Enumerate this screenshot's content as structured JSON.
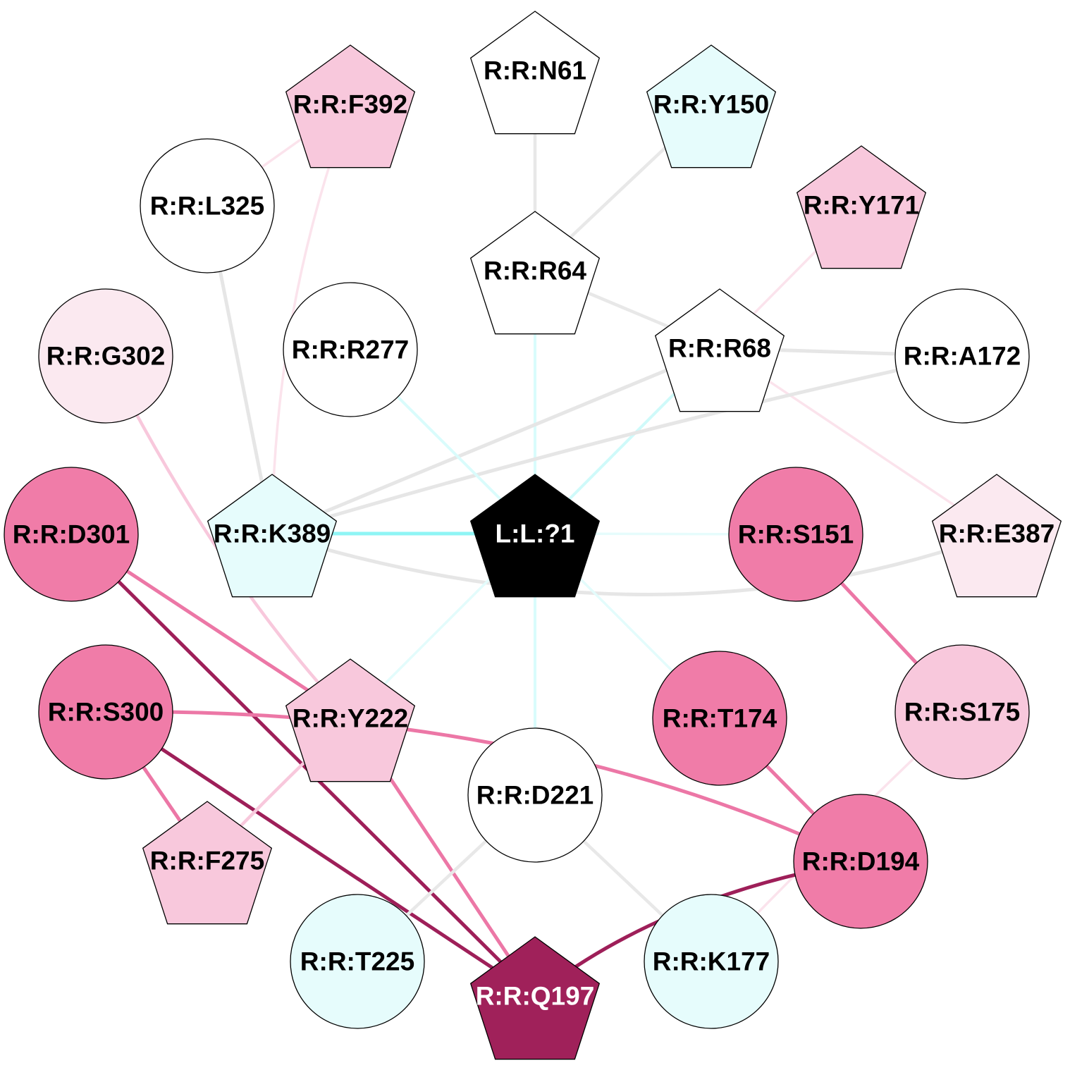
{
  "nodes": [
    {
      "id": "L:L:?1",
      "label": "L:L:?1",
      "shape": "pentagon",
      "fill": "#000000",
      "text_color": "#ffffff"
    },
    {
      "id": "R:R:N61",
      "label": "R:R:N61",
      "shape": "pentagon",
      "fill": "#ffffff",
      "text_color": "#000000"
    },
    {
      "id": "R:R:F392",
      "label": "R:R:F392",
      "shape": "pentagon",
      "fill": "#f8c8dc",
      "text_color": "#000000"
    },
    {
      "id": "R:R:Y150",
      "label": "R:R:Y150",
      "shape": "pentagon",
      "fill": "#e6fcfc",
      "text_color": "#000000"
    },
    {
      "id": "R:R:L325",
      "label": "R:R:L325",
      "shape": "circle",
      "fill": "#ffffff",
      "text_color": "#000000"
    },
    {
      "id": "R:R:Y171",
      "label": "R:R:Y171",
      "shape": "pentagon",
      "fill": "#f8c8dc",
      "text_color": "#000000"
    },
    {
      "id": "R:R:R64",
      "label": "R:R:R64",
      "shape": "pentagon",
      "fill": "#ffffff",
      "text_color": "#000000"
    },
    {
      "id": "R:R:G302",
      "label": "R:R:G302",
      "shape": "circle",
      "fill": "#fbe9f0",
      "text_color": "#000000"
    },
    {
      "id": "R:R:R277",
      "label": "R:R:R277",
      "shape": "circle",
      "fill": "#ffffff",
      "text_color": "#000000"
    },
    {
      "id": "R:R:R68",
      "label": "R:R:R68",
      "shape": "pentagon",
      "fill": "#ffffff",
      "text_color": "#000000"
    },
    {
      "id": "R:R:A172",
      "label": "R:R:A172",
      "shape": "circle",
      "fill": "#ffffff",
      "text_color": "#000000"
    },
    {
      "id": "R:R:D301",
      "label": "R:R:D301",
      "shape": "circle",
      "fill": "#f07ca8",
      "text_color": "#000000"
    },
    {
      "id": "R:R:K389",
      "label": "R:R:K389",
      "shape": "pentagon",
      "fill": "#e6fcfc",
      "text_color": "#000000"
    },
    {
      "id": "R:R:S151",
      "label": "R:R:S151",
      "shape": "circle",
      "fill": "#f07ca8",
      "text_color": "#000000"
    },
    {
      "id": "R:R:E387",
      "label": "R:R:E387",
      "shape": "pentagon",
      "fill": "#fbe9f0",
      "text_color": "#000000"
    },
    {
      "id": "R:R:S300",
      "label": "R:R:S300",
      "shape": "circle",
      "fill": "#f07ca8",
      "text_color": "#000000"
    },
    {
      "id": "R:R:Y222",
      "label": "R:R:Y222",
      "shape": "pentagon",
      "fill": "#f8c8dc",
      "text_color": "#000000"
    },
    {
      "id": "R:R:T174",
      "label": "R:R:T174",
      "shape": "circle",
      "fill": "#f07ca8",
      "text_color": "#000000"
    },
    {
      "id": "R:R:S175",
      "label": "R:R:S175",
      "shape": "circle",
      "fill": "#f8c8dc",
      "text_color": "#000000"
    },
    {
      "id": "R:R:D221",
      "label": "R:R:D221",
      "shape": "circle",
      "fill": "#ffffff",
      "text_color": "#000000"
    },
    {
      "id": "R:R:F275",
      "label": "R:R:F275",
      "shape": "pentagon",
      "fill": "#f8c8dc",
      "text_color": "#000000"
    },
    {
      "id": "R:R:D194",
      "label": "R:R:D194",
      "shape": "circle",
      "fill": "#f07ca8",
      "text_color": "#000000"
    },
    {
      "id": "R:R:T225",
      "label": "R:R:T225",
      "shape": "circle",
      "fill": "#e6fcfc",
      "text_color": "#000000"
    },
    {
      "id": "R:R:K177",
      "label": "R:R:K177",
      "shape": "circle",
      "fill": "#e6fcfc",
      "text_color": "#000000"
    },
    {
      "id": "R:R:Q197",
      "label": "R:R:Q197",
      "shape": "pentagon",
      "fill": "#a0215a",
      "text_color": "#ffffff"
    }
  ],
  "edges": [
    {
      "source": "R:R:N61",
      "target": "R:R:R64",
      "color": "#e8e8e8"
    },
    {
      "source": "R:R:Y150",
      "target": "R:R:R64",
      "color": "#e8e8e8"
    },
    {
      "source": "R:R:R64",
      "target": "R:R:R68",
      "color": "#e8e8e8"
    },
    {
      "source": "R:R:R64",
      "target": "L:L:?1",
      "color": "#d9fcfc"
    },
    {
      "source": "R:R:F392",
      "target": "R:R:L325",
      "color": "#fbe3ec"
    },
    {
      "source": "R:R:F392",
      "target": "R:R:K389",
      "color": "#fbe3ec"
    },
    {
      "source": "R:R:L325",
      "target": "R:R:K389",
      "color": "#e6e6e6"
    },
    {
      "source": "R:R:Y171",
      "target": "R:R:R68",
      "color": "#fbe3ec"
    },
    {
      "source": "R:R:R68",
      "target": "R:R:A172",
      "color": "#e6e6e6"
    },
    {
      "source": "R:R:R68",
      "target": "R:R:K389",
      "color": "#e6e6e6"
    },
    {
      "source": "R:R:R68",
      "target": "R:R:E387",
      "color": "#fbe3ec"
    },
    {
      "source": "R:R:R68",
      "target": "L:L:?1",
      "color": "#cffafa"
    },
    {
      "source": "R:R:A172",
      "target": "R:R:K389",
      "color": "#e6e6e6"
    },
    {
      "source": "R:R:R277",
      "target": "L:L:?1",
      "color": "#d9fcfc"
    },
    {
      "source": "R:R:K389",
      "target": "L:L:?1",
      "color": "#8ff5f5"
    },
    {
      "source": "R:R:K389",
      "target": "R:R:E387",
      "color": "#e6e6e6"
    },
    {
      "source": "L:L:?1",
      "target": "R:R:S151",
      "color": "#e6fcfc"
    },
    {
      "source": "L:L:?1",
      "target": "R:R:Y222",
      "color": "#e3fcfc"
    },
    {
      "source": "L:L:?1",
      "target": "R:R:T174",
      "color": "#e3fcfc"
    },
    {
      "source": "L:L:?1",
      "target": "R:R:D221",
      "color": "#d9fcfc"
    },
    {
      "source": "R:R:G302",
      "target": "R:R:Y222",
      "color": "#f8c8dc"
    },
    {
      "source": "R:R:D301",
      "target": "R:R:Y222",
      "color": "#ec77a6"
    },
    {
      "source": "R:R:D301",
      "target": "R:R:Q197",
      "color": "#9e1f59"
    },
    {
      "source": "R:R:S300",
      "target": "R:R:D194",
      "color": "#ec77a6"
    },
    {
      "source": "R:R:S300",
      "target": "R:R:F275",
      "color": "#ec77a6"
    },
    {
      "source": "R:R:S300",
      "target": "R:R:Q197",
      "color": "#9e1f59"
    },
    {
      "source": "R:R:Y222",
      "target": "R:R:F275",
      "color": "#f8c8dc"
    },
    {
      "source": "R:R:Y222",
      "target": "R:R:Q197",
      "color": "#ec77a6"
    },
    {
      "source": "R:R:S151",
      "target": "R:R:S175",
      "color": "#ec77a6"
    },
    {
      "source": "R:R:T174",
      "target": "R:R:D194",
      "color": "#ec77a6"
    },
    {
      "source": "R:R:S175",
      "target": "R:R:K177",
      "color": "#fbe3ec"
    },
    {
      "source": "R:R:D221",
      "target": "R:R:T225",
      "color": "#e8e8e8"
    },
    {
      "source": "R:R:D221",
      "target": "R:R:K177",
      "color": "#e8e8e8"
    },
    {
      "source": "R:R:D194",
      "target": "R:R:Q197",
      "color": "#9e1f59"
    }
  ]
}
